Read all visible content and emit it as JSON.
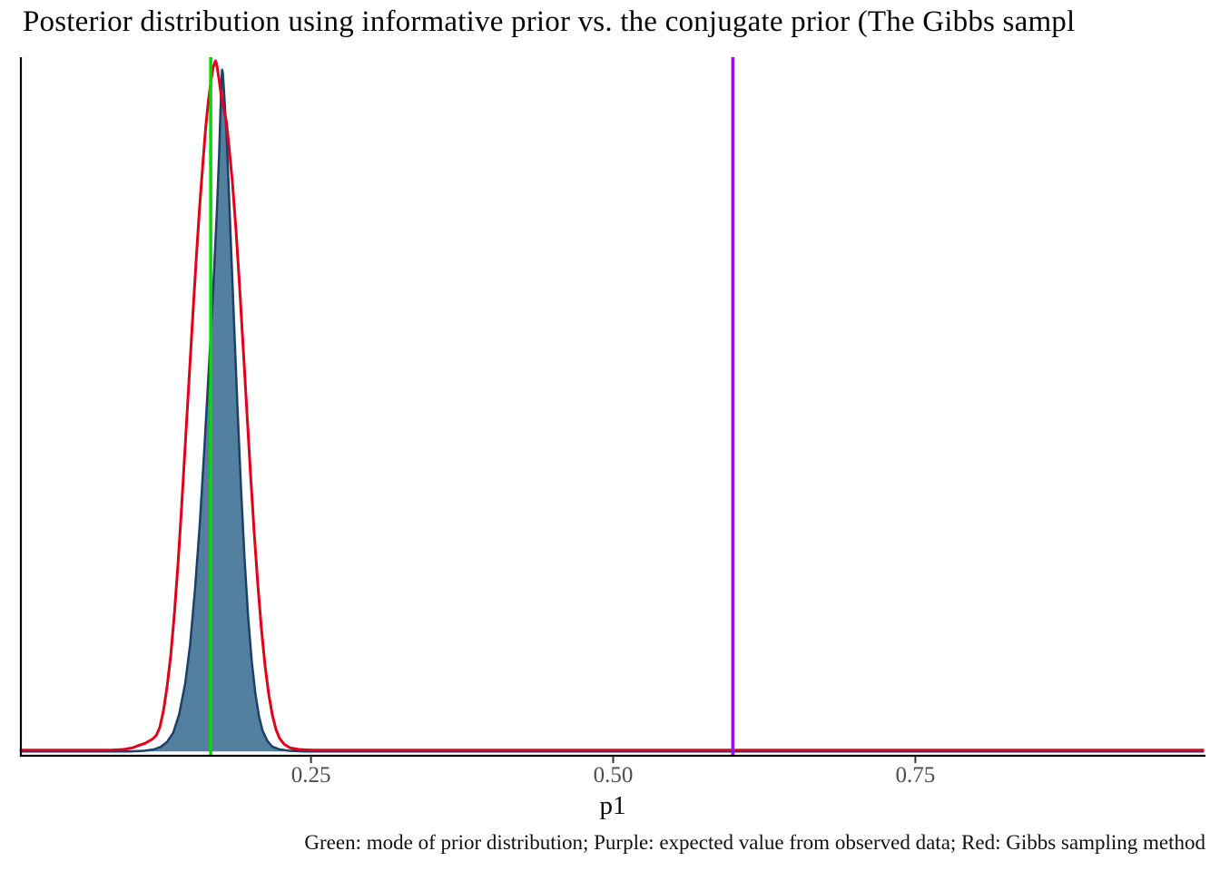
{
  "chart_data": {
    "type": "area",
    "title": "Posterior distribution using informative prior vs. the conjugate prior (The Gibbs sampl",
    "xlabel": "p1",
    "ylabel": "",
    "caption": "Green: mode of prior distribution; Purple: expected value from observed data; Red: Gibbs sampling method",
    "x_range": [
      0.01,
      0.99
    ],
    "x_ticks": [
      0.25,
      0.5,
      0.75
    ],
    "x_tick_labels": [
      "0.25",
      "0.50",
      "0.75"
    ],
    "grid": false,
    "legend": "none",
    "colors": {
      "density_fill": "#52809E",
      "density_stroke": "#1C4067",
      "gibbs_stroke": "#E2001A",
      "prior_mode_line": "#00DB00",
      "observed_value_line": "#9B0FEF",
      "axis": "#000000",
      "tick_text": "#4D4D4D"
    },
    "series": [
      {
        "name": "posterior-informative-prior",
        "fill": "#52809E",
        "stroke": "#1C4067",
        "stroke_width": 2.5,
        "points": [
          [
            0.01,
            0.001
          ],
          [
            0.1,
            0.001
          ],
          [
            0.112,
            0.002
          ],
          [
            0.12,
            0.004
          ],
          [
            0.126,
            0.008
          ],
          [
            0.131,
            0.015
          ],
          [
            0.136,
            0.028
          ],
          [
            0.141,
            0.055
          ],
          [
            0.146,
            0.1
          ],
          [
            0.15,
            0.155
          ],
          [
            0.154,
            0.235
          ],
          [
            0.158,
            0.33
          ],
          [
            0.162,
            0.445
          ],
          [
            0.166,
            0.57
          ],
          [
            0.169,
            0.665
          ],
          [
            0.172,
            0.775
          ],
          [
            0.174,
            0.865
          ],
          [
            0.175,
            0.92
          ],
          [
            0.176,
            0.975
          ],
          [
            0.1765,
            0.987
          ],
          [
            0.177,
            0.983
          ],
          [
            0.178,
            0.958
          ],
          [
            0.18,
            0.898
          ],
          [
            0.182,
            0.815
          ],
          [
            0.184,
            0.725
          ],
          [
            0.186,
            0.635
          ],
          [
            0.189,
            0.505
          ],
          [
            0.192,
            0.385
          ],
          [
            0.195,
            0.28
          ],
          [
            0.198,
            0.197
          ],
          [
            0.201,
            0.132
          ],
          [
            0.204,
            0.085
          ],
          [
            0.207,
            0.052
          ],
          [
            0.21,
            0.031
          ],
          [
            0.214,
            0.016
          ],
          [
            0.218,
            0.008
          ],
          [
            0.224,
            0.004
          ],
          [
            0.232,
            0.002
          ],
          [
            0.245,
            0.001
          ],
          [
            0.988,
            0.001
          ]
        ]
      },
      {
        "name": "gibbs-sampling-density",
        "fill": "none",
        "stroke": "#E2001A",
        "stroke_width": 3,
        "points": [
          [
            0.01,
            0.003
          ],
          [
            0.085,
            0.003
          ],
          [
            0.095,
            0.004
          ],
          [
            0.102,
            0.006
          ],
          [
            0.108,
            0.01
          ],
          [
            0.113,
            0.013
          ],
          [
            0.116,
            0.016
          ],
          [
            0.119,
            0.019
          ],
          [
            0.122,
            0.024
          ],
          [
            0.125,
            0.036
          ],
          [
            0.128,
            0.06
          ],
          [
            0.131,
            0.095
          ],
          [
            0.134,
            0.14
          ],
          [
            0.137,
            0.2
          ],
          [
            0.14,
            0.272
          ],
          [
            0.143,
            0.355
          ],
          [
            0.146,
            0.445
          ],
          [
            0.149,
            0.535
          ],
          [
            0.152,
            0.625
          ],
          [
            0.155,
            0.712
          ],
          [
            0.158,
            0.792
          ],
          [
            0.161,
            0.862
          ],
          [
            0.163,
            0.905
          ],
          [
            0.165,
            0.94
          ],
          [
            0.167,
            0.968
          ],
          [
            0.169,
            0.99
          ],
          [
            0.171,
            1.0
          ],
          [
            0.172,
            0.995
          ],
          [
            0.174,
            0.972
          ],
          [
            0.176,
            0.945
          ],
          [
            0.178,
            0.93
          ],
          [
            0.18,
            0.912
          ],
          [
            0.182,
            0.88
          ],
          [
            0.185,
            0.825
          ],
          [
            0.188,
            0.755
          ],
          [
            0.191,
            0.672
          ],
          [
            0.194,
            0.583
          ],
          [
            0.197,
            0.492
          ],
          [
            0.2,
            0.402
          ],
          [
            0.203,
            0.318
          ],
          [
            0.206,
            0.243
          ],
          [
            0.209,
            0.178
          ],
          [
            0.212,
            0.125
          ],
          [
            0.215,
            0.084
          ],
          [
            0.218,
            0.054
          ],
          [
            0.221,
            0.033
          ],
          [
            0.224,
            0.02
          ],
          [
            0.228,
            0.011
          ],
          [
            0.233,
            0.006
          ],
          [
            0.24,
            0.004
          ],
          [
            0.25,
            0.003
          ],
          [
            0.988,
            0.003
          ]
        ]
      }
    ],
    "vlines": [
      {
        "name": "prior-mode-line",
        "color": "#00DB00",
        "x": 0.167,
        "width": 3.5
      },
      {
        "name": "observed-expected-value-line",
        "color": "#9B0FEF",
        "x": 0.599,
        "width": 3.5
      }
    ]
  }
}
